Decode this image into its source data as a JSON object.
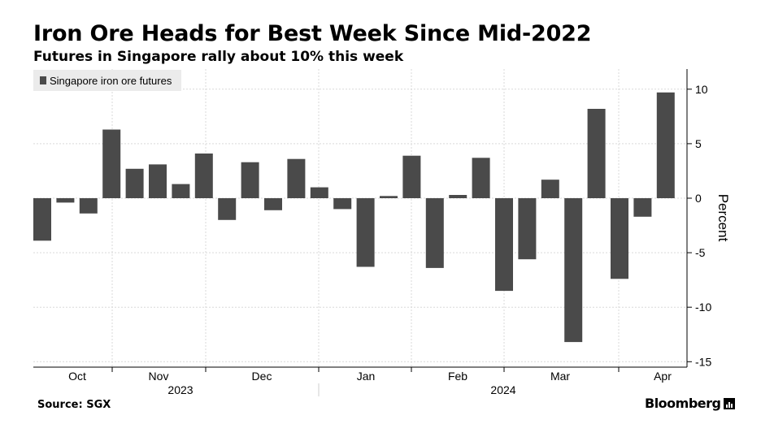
{
  "header": {
    "title": "Iron Ore Heads for Best Week Since Mid-2022",
    "subtitle": "Futures in Singapore rally about 10% this week"
  },
  "footer": {
    "source": "Source: SGX",
    "brand": "Bloomberg"
  },
  "colors": {
    "bar": "#4a4a4a",
    "grid": "#d9d9d9",
    "legend_bg": "#ebebeb"
  },
  "chart_data": {
    "type": "bar",
    "title": "Iron Ore Heads for Best Week Since Mid-2022",
    "subtitle": "Futures in Singapore rally about 10% this week",
    "ylabel": "Percent",
    "ylim": [
      -15,
      12
    ],
    "yticks": [
      10,
      5,
      0,
      -5,
      -10,
      -15
    ],
    "grid": true,
    "legend_position": "top-left",
    "month_labels": [
      "Oct",
      "Nov",
      "Dec",
      "Jan",
      "Feb",
      "Mar",
      "Apr"
    ],
    "year_labels": [
      "2023",
      "2024"
    ],
    "series": [
      {
        "name": "Singapore iron ore futures",
        "values": [
          -3.9,
          -0.4,
          -1.4,
          6.3,
          2.7,
          3.1,
          1.3,
          4.1,
          -2.0,
          3.3,
          -1.1,
          3.6,
          1.0,
          -1.0,
          -6.3,
          0.2,
          3.9,
          -6.4,
          0.3,
          3.7,
          -8.5,
          -5.6,
          1.7,
          -13.2,
          8.2,
          -7.4,
          -1.7,
          9.7
        ]
      }
    ]
  }
}
